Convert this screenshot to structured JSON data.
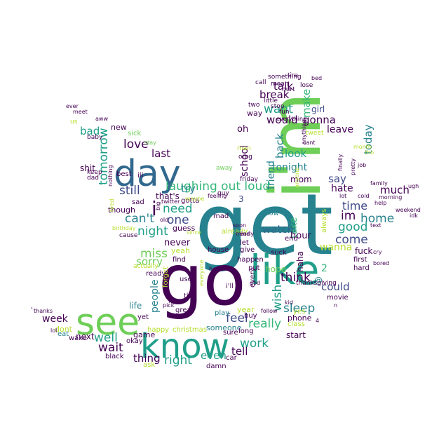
{
  "palette": {
    "purple": "#440154",
    "indigo": "#3e4a89",
    "blue": "#31688e",
    "teal": "#26828e",
    "green": "#1f9e89",
    "lightgreen": "#35b779",
    "lime": "#6ece58",
    "yellow": "#b5de2b",
    "bright": "#fde725"
  },
  "words": [
    "get",
    "go",
    "i'm",
    "like",
    "know",
    "day",
    "see",
    "laughing out loud",
    "tomorrow",
    "well",
    "can't",
    "love",
    "bad",
    "still",
    "night",
    "i",
    "need",
    "one",
    "try",
    "last",
    "miss",
    "sorry",
    "never",
    "guess",
    "yeah",
    "people",
    "wait",
    "thing",
    "right",
    "even",
    "work",
    "tell",
    "feel",
    "really",
    "wish",
    "think",
    "sleep",
    "could",
    "want",
    "talk",
    "break",
    "back",
    "friend",
    "school",
    "would",
    "oh",
    "look",
    "tonight",
    "make",
    "gonna",
    "girl",
    "leave",
    "today",
    "im",
    "time",
    "home",
    "good",
    "much",
    "say",
    "hate",
    "come",
    "wanna",
    "fuck",
    "take",
    "always",
    "watch",
    "2",
    "hour",
    "mom",
    "haha",
    "hope",
    "@",
    "that's",
    "3",
    "week",
    "life",
    "game",
    "next",
    "new",
    "shit",
    "though",
    "start",
    "phone",
    "year",
    "someone",
    "play",
    "dont",
    "eat",
    "wake",
    "sad",
    "okay",
    "black",
    "damn",
    "car",
    "ask",
    "christmas",
    "happy",
    "great",
    "use",
    "till",
    "forget",
    "i'll",
    "every",
    "buy",
    "sure",
    "long",
    "put",
    "happen",
    "let",
    "give",
    "already",
    "house",
    "mad",
    "show",
    "end",
    "suck",
    "first",
    "hard",
    "thanksgiving",
    "movie",
    "yes",
    "class",
    "ready",
    "find",
    "actually",
    "yet",
    "lol",
    "thanks",
    "'",
    "best",
    "ill",
    "sick",
    "baby",
    "dad",
    "keep",
    "us",
    "aww",
    "meet",
    "ever",
    "nothing",
    "stay",
    "big",
    "gotta",
    "maybe",
    "twitter",
    "since",
    "old",
    "cause",
    "birthday",
    "tired",
    "friday",
    "guy",
    "away",
    "man",
    "omg",
    "way",
    "two",
    "little",
    "stop",
    "fun",
    "everything",
    "call",
    "something",
    "mean",
    "hurt",
    "tire",
    "feeling",
    "lose",
    "bed",
    "cant",
    "tweet",
    "finally",
    "pretty",
    "month",
    "tho",
    "cold",
    "lot",
    "family",
    "morning",
    "help",
    "text",
    "cry",
    "weekend",
    "idk",
    "ugh",
    "n",
    "4",
    "soon",
    "early",
    "anything",
    "anyone",
    "everyone",
    "god",
    "follow",
    "kid",
    "job",
    "head",
    "pick",
    "bored",
    "fall",
    "mind"
  ]
}
